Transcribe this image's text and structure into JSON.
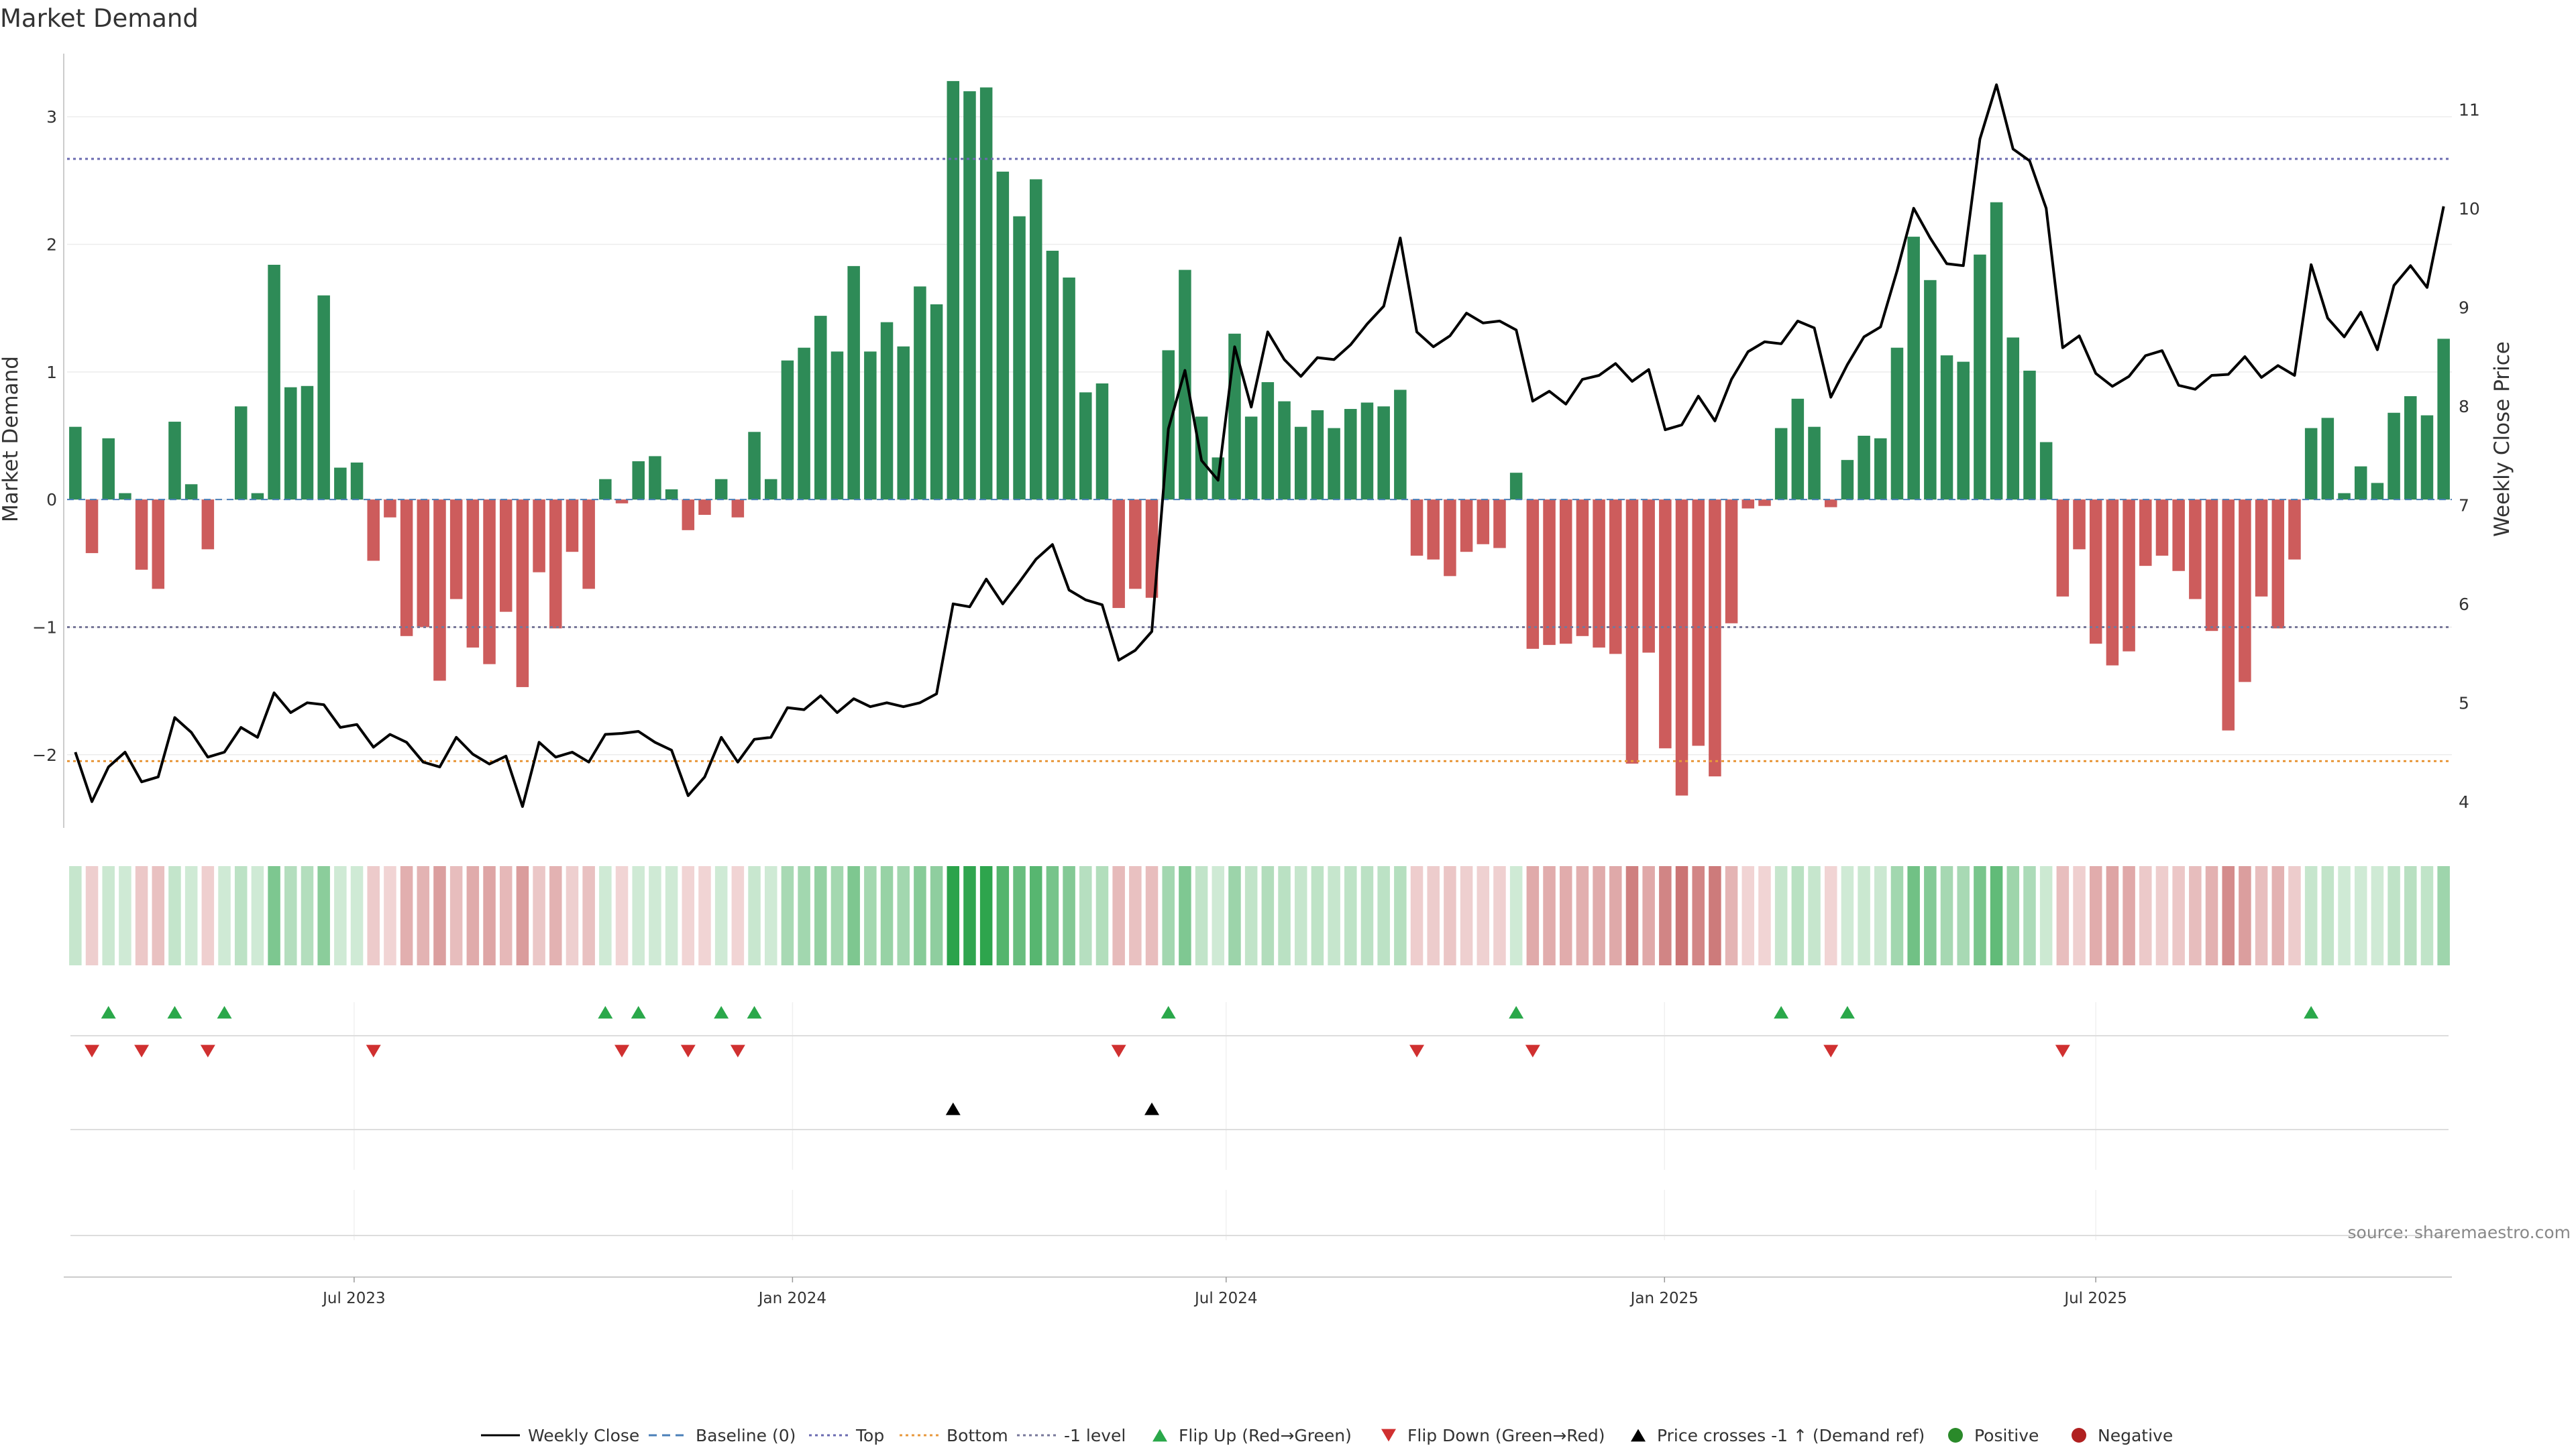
{
  "chart_data": {
    "type": "bar",
    "title": "Market Demand",
    "ylabel_left": "Market Demand",
    "ylabel_right": "Weekly Close Price",
    "ylim_left": [
      -2.6,
      3.6
    ],
    "ylim_right": [
      3.7,
      11.7
    ],
    "yticks_left": [
      3,
      2,
      1,
      0,
      -1,
      -2
    ],
    "ytick_labels_left": [
      "3",
      "2",
      "1",
      "0",
      "−1",
      "−2"
    ],
    "yticks_right": [
      11,
      10,
      9,
      8,
      7,
      6,
      5,
      4
    ],
    "x_start": "2023-03-06",
    "x_end": "2025-11-24",
    "x_ticks": [
      "2023-07-01",
      "2024-01-01",
      "2024-07-01",
      "2025-01-01",
      "2025-07-01"
    ],
    "x_tick_labels": [
      "Jul 2023",
      "Jan 2024",
      "Jul 2024",
      "Jan 2025",
      "Jul 2025"
    ],
    "levels": {
      "top": 2.67,
      "minus_one": -1.0,
      "bottom": -2.05
    },
    "colors": {
      "positive": "#2e8b57",
      "negative": "#cd5c5c",
      "price": "#000000",
      "top": "#6a6ab0",
      "bottom": "#e8983c",
      "minus_one": "#777799",
      "baseline": "#4a7fb8",
      "flip_up": "#2aa84a",
      "flip_down": "#d03030",
      "cross": "#000000",
      "positive_dot": "#2a8a2a",
      "negative_dot": "#b02020"
    },
    "demand": [
      0.57,
      -0.42,
      0.48,
      0.05,
      -0.55,
      -0.7,
      0.61,
      0.12,
      -0.39,
      0.0,
      0.73,
      0.05,
      1.84,
      0.88,
      0.89,
      1.6,
      0.25,
      0.29,
      -0.48,
      -0.14,
      -1.07,
      -1.0,
      -1.42,
      -0.78,
      -1.16,
      -1.29,
      -0.88,
      -1.47,
      -0.57,
      -1.01,
      -0.41,
      -0.7,
      0.16,
      -0.03,
      0.3,
      0.34,
      0.08,
      -0.24,
      -0.12,
      0.16,
      -0.14,
      0.53,
      0.16,
      1.09,
      1.19,
      1.44,
      1.16,
      1.83,
      1.16,
      1.39,
      1.2,
      1.67,
      1.53,
      3.28,
      3.2,
      3.23,
      2.57,
      2.22,
      2.51,
      1.95,
      1.74,
      0.84,
      0.91,
      -0.85,
      -0.7,
      -0.77,
      1.17,
      1.8,
      0.65,
      0.33,
      1.3,
      0.65,
      0.92,
      0.77,
      0.57,
      0.7,
      0.56,
      0.71,
      0.76,
      0.73,
      0.86,
      -0.44,
      -0.47,
      -0.6,
      -0.41,
      -0.35,
      -0.38,
      0.21,
      -1.17,
      -1.14,
      -1.13,
      -1.07,
      -1.16,
      -1.21,
      -2.07,
      -1.2,
      -1.95,
      -2.32,
      -1.93,
      -2.17,
      -0.97,
      -0.07,
      -0.05,
      0.56,
      0.79,
      0.57,
      -0.06,
      0.31,
      0.5,
      0.48,
      1.19,
      2.06,
      1.72,
      1.13,
      1.08,
      1.92,
      2.33,
      1.27,
      1.01,
      0.45,
      -0.76,
      -0.39,
      -1.13,
      -1.3,
      -1.19,
      -0.52,
      -0.44,
      -0.56,
      -0.78,
      -1.03,
      -1.81,
      -1.43,
      -0.76,
      -1.01,
      -0.47,
      0.56,
      0.64,
      0.05,
      0.26,
      0.13,
      0.68,
      0.81,
      0.66,
      1.26
    ],
    "price": [
      4.5,
      4.0,
      4.35,
      4.5,
      4.2,
      4.25,
      4.85,
      4.7,
      4.45,
      4.5,
      4.75,
      4.65,
      5.1,
      4.9,
      5.0,
      4.98,
      4.75,
      4.78,
      4.55,
      4.68,
      4.6,
      4.4,
      4.35,
      4.65,
      4.48,
      4.38,
      4.46,
      3.95,
      4.6,
      4.45,
      4.5,
      4.4,
      4.68,
      4.69,
      4.71,
      4.6,
      4.52,
      4.06,
      4.25,
      4.65,
      4.4,
      4.63,
      4.65,
      4.95,
      4.93,
      5.07,
      4.9,
      5.04,
      4.96,
      5.0,
      4.96,
      5.0,
      5.09,
      6.0,
      5.97,
      6.25,
      6.0,
      6.22,
      6.45,
      6.6,
      6.14,
      6.04,
      5.99,
      5.43,
      5.53,
      5.72,
      7.77,
      8.36,
      7.45,
      7.25,
      8.6,
      7.99,
      8.75,
      8.47,
      8.3,
      8.49,
      8.47,
      8.62,
      8.83,
      9.01,
      9.7,
      8.75,
      8.6,
      8.71,
      8.94,
      8.84,
      8.86,
      8.77,
      8.05,
      8.15,
      8.02,
      8.27,
      8.31,
      8.43,
      8.25,
      8.37,
      7.76,
      7.81,
      8.1,
      7.85,
      8.27,
      8.55,
      8.65,
      8.63,
      8.86,
      8.79,
      8.09,
      8.42,
      8.7,
      8.8,
      9.37,
      10.0,
      9.7,
      9.44,
      9.42,
      10.7,
      11.25,
      10.6,
      10.48,
      10.0,
      8.59,
      8.71,
      8.33,
      8.2,
      8.3,
      8.51,
      8.56,
      8.21,
      8.17,
      8.31,
      8.32,
      8.5,
      8.29,
      8.41,
      8.31,
      9.43,
      8.89,
      8.7,
      8.95,
      8.57,
      9.22,
      9.42,
      9.2,
      10.02
    ],
    "flip_up_idx": [
      2,
      6,
      9,
      32,
      34,
      39,
      41,
      66,
      87,
      103,
      107,
      135
    ],
    "flip_down_idx": [
      1,
      4,
      8,
      18,
      33,
      37,
      40,
      63,
      81,
      88,
      106,
      120
    ],
    "cross_idx": [
      53,
      65
    ],
    "source": "source: sharemaestro.com",
    "legend": [
      "Weekly Close",
      "Baseline (0)",
      "Top",
      "Bottom",
      "-1 level",
      "Flip Up (Red→Green)",
      "Flip Down (Green→Red)",
      "Price crosses -1 ↑ (Demand ref)",
      "Positive",
      "Negative"
    ]
  }
}
